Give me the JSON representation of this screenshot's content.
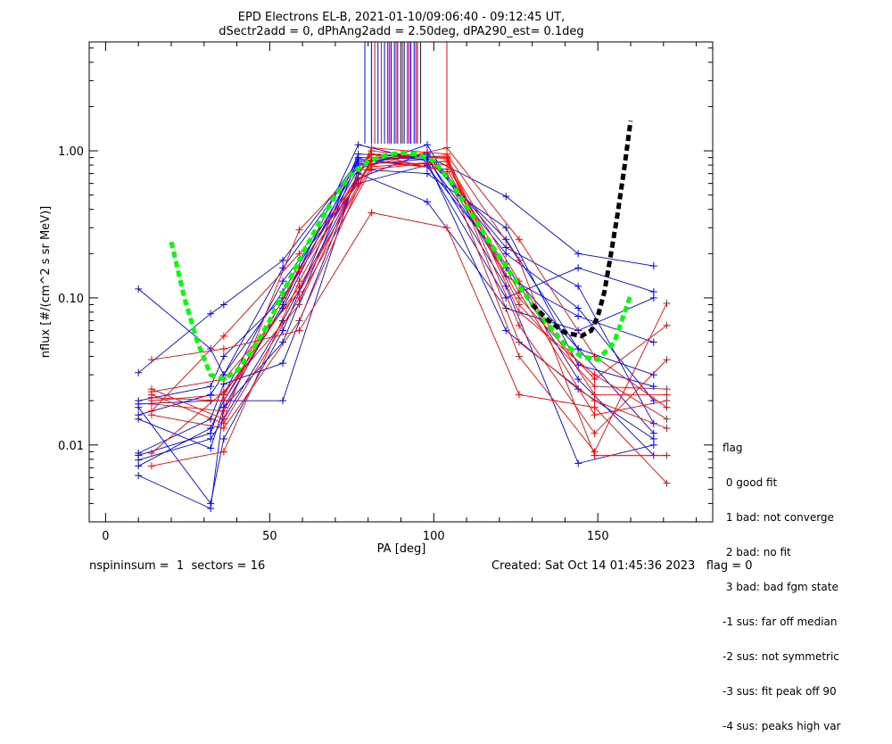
{
  "chart_data": {
    "type": "line",
    "title": "EPD Electrons EL-B, 2021-01-10/09:06:40 - 09:12:45 UT,",
    "subtitle": "dSectr2add = 0, dPhAng2add = 2.50deg, dPA290_est=   0.1deg",
    "xlabel": "PA [deg]",
    "ylabel": "nflux [#/(cm^2 s sr MeV)]",
    "xlim": [
      -5,
      185
    ],
    "ylim": [
      0.003,
      5.5
    ],
    "yscale": "log",
    "xticks": [
      0,
      50,
      100,
      150
    ],
    "xtick_labels": [
      "0",
      "50",
      "100",
      "150"
    ],
    "yticks": [
      0.01,
      0.1,
      1.0
    ],
    "ytick_labels": [
      "0.01",
      "0.10",
      "1.00"
    ],
    "colors": {
      "blue": "#0000ff",
      "red": "#ff0000",
      "green": "#00ff00",
      "black": "#000000"
    },
    "series": [
      {
        "color": "blue",
        "x": [
          10,
          32,
          36,
          54,
          77,
          98,
          122,
          144,
          167
        ],
        "y": [
          0.115,
          0.045,
          0.03,
          0.11,
          0.8,
          0.88,
          0.25,
          0.045,
          0.012
        ]
      },
      {
        "color": "blue",
        "x": [
          10,
          32,
          36,
          54,
          77,
          98,
          122,
          144,
          167
        ],
        "y": [
          0.031,
          0.078,
          0.09,
          0.18,
          0.85,
          0.92,
          0.49,
          0.2,
          0.165
        ]
      },
      {
        "color": "blue",
        "x": [
          10,
          32,
          36,
          54,
          77,
          98,
          122,
          144,
          167
        ],
        "y": [
          0.019,
          0.02,
          0.02,
          0.02,
          0.75,
          1.1,
          0.14,
          0.075,
          0.05
        ]
      },
      {
        "color": "blue",
        "x": [
          10,
          32,
          36,
          54,
          77,
          98,
          122,
          144,
          167
        ],
        "y": [
          0.018,
          0.004,
          0.011,
          0.06,
          0.95,
          0.9,
          0.12,
          0.0075,
          0.01
        ]
      },
      {
        "color": "blue",
        "x": [
          10,
          32,
          36,
          54,
          77,
          98,
          122,
          144,
          167
        ],
        "y": [
          0.0062,
          0.0037,
          0.018,
          0.09,
          1.1,
          0.85,
          0.06,
          0.024,
          0.011
        ]
      },
      {
        "color": "blue",
        "x": [
          10,
          32,
          36,
          54,
          77,
          98,
          122,
          144,
          167
        ],
        "y": [
          0.0085,
          0.012,
          0.022,
          0.13,
          0.6,
          0.8,
          0.1,
          0.16,
          0.11
        ]
      },
      {
        "color": "blue",
        "x": [
          10,
          32,
          36,
          54,
          77,
          98,
          122,
          144,
          167
        ],
        "y": [
          0.016,
          0.022,
          0.03,
          0.16,
          0.82,
          0.95,
          0.2,
          0.085,
          0.02
        ]
      },
      {
        "color": "blue",
        "x": [
          10,
          32,
          36,
          54,
          77,
          98,
          122,
          144,
          167
        ],
        "y": [
          0.0088,
          0.015,
          0.026,
          0.036,
          0.7,
          0.45,
          0.085,
          0.06,
          0.1
        ]
      },
      {
        "color": "blue",
        "x": [
          10,
          32,
          36,
          54,
          77,
          98,
          122,
          144,
          167
        ],
        "y": [
          0.015,
          0.0095,
          0.018,
          0.05,
          0.88,
          0.78,
          0.17,
          0.028,
          0.0085
        ]
      },
      {
        "color": "blue",
        "x": [
          10,
          32,
          36,
          54,
          77,
          98,
          122,
          144,
          167
        ],
        "y": [
          0.0079,
          0.011,
          0.015,
          0.07,
          0.65,
          0.98,
          0.22,
          0.12,
          0.014
        ]
      },
      {
        "color": "blue",
        "x": [
          10,
          32,
          36,
          54,
          77,
          98,
          122,
          144,
          167
        ],
        "y": [
          0.02,
          0.025,
          0.04,
          0.1,
          0.75,
          0.7,
          0.3,
          0.035,
          0.025
        ]
      },
      {
        "color": "blue",
        "x": [
          10,
          32,
          36,
          54,
          77,
          98,
          122,
          144,
          167
        ],
        "y": [
          0.0072,
          0.013,
          0.02,
          0.085,
          0.9,
          0.88,
          0.16,
          0.045,
          0.03
        ]
      },
      {
        "color": "red",
        "x": [
          14,
          36,
          59,
          81,
          104,
          126,
          149,
          171
        ],
        "y": [
          0.038,
          0.045,
          0.06,
          0.38,
          0.3,
          0.022,
          0.018,
          0.0055
        ]
      },
      {
        "color": "red",
        "x": [
          14,
          36,
          59,
          81,
          104,
          126,
          149,
          171
        ],
        "y": [
          0.024,
          0.015,
          0.29,
          0.95,
          0.72,
          0.04,
          0.009,
          0.092
        ]
      },
      {
        "color": "red",
        "x": [
          14,
          36,
          59,
          81,
          104,
          126,
          149,
          171
        ],
        "y": [
          0.021,
          0.02,
          0.15,
          0.85,
          0.75,
          0.1,
          0.028,
          0.065
        ]
      },
      {
        "color": "red",
        "x": [
          14,
          36,
          59,
          81,
          104,
          126,
          149,
          171
        ],
        "y": [
          0.0072,
          0.009,
          0.13,
          1.0,
          0.88,
          0.065,
          0.012,
          0.038
        ]
      },
      {
        "color": "red",
        "x": [
          14,
          36,
          59,
          81,
          104,
          126,
          149,
          171
        ],
        "y": [
          0.0088,
          0.023,
          0.09,
          1.05,
          0.95,
          0.18,
          0.0085,
          0.0085
        ]
      },
      {
        "color": "red",
        "x": [
          14,
          36,
          59,
          81,
          104,
          126,
          149,
          171
        ],
        "y": [
          0.017,
          0.055,
          0.2,
          0.8,
          1.05,
          0.25,
          0.04,
          0.018
        ]
      },
      {
        "color": "red",
        "x": [
          14,
          36,
          59,
          81,
          104,
          126,
          149,
          171
        ],
        "y": [
          0.022,
          0.014,
          0.1,
          0.75,
          0.85,
          0.13,
          0.022,
          0.022
        ]
      },
      {
        "color": "red",
        "x": [
          14,
          36,
          59,
          81,
          104,
          126,
          149,
          171
        ],
        "y": [
          0.016,
          0.013,
          0.07,
          0.9,
          0.92,
          0.08,
          0.03,
          0.015
        ]
      },
      {
        "color": "red",
        "x": [
          14,
          36,
          59,
          81,
          104,
          126,
          149,
          171
        ],
        "y": [
          0.023,
          0.028,
          0.11,
          0.85,
          0.8,
          0.11,
          0.016,
          0.02
        ]
      },
      {
        "color": "red",
        "x": [
          14,
          36,
          59,
          81,
          104,
          126,
          149,
          171
        ],
        "y": [
          0.019,
          0.017,
          0.16,
          0.95,
          0.9,
          0.05,
          0.02,
          0.013
        ]
      },
      {
        "color": "red",
        "x": [
          14,
          36,
          59,
          81,
          104,
          126,
          149,
          171
        ],
        "y": [
          0.02,
          0.022,
          0.12,
          0.78,
          0.85,
          0.09,
          0.025,
          0.024
        ]
      }
    ],
    "fits": [
      {
        "color": "green",
        "style": "dashed",
        "x": [
          20,
          24,
          28,
          32,
          36,
          40,
          45,
          50,
          55,
          60,
          65,
          70,
          75,
          80,
          85,
          90,
          95,
          100,
          105,
          110,
          115,
          120,
          125,
          130,
          135,
          140,
          145,
          150,
          155,
          160
        ],
        "y": [
          0.24,
          0.1,
          0.05,
          0.03,
          0.028,
          0.032,
          0.045,
          0.07,
          0.12,
          0.2,
          0.32,
          0.5,
          0.7,
          0.85,
          0.93,
          0.97,
          0.95,
          0.85,
          0.62,
          0.42,
          0.28,
          0.19,
          0.13,
          0.09,
          0.065,
          0.048,
          0.04,
          0.038,
          0.05,
          0.105
        ]
      },
      {
        "color": "black",
        "style": "dashed",
        "x": [
          130,
          135,
          140,
          145,
          148,
          150,
          152,
          154,
          156,
          158,
          160
        ],
        "y": [
          0.09,
          0.07,
          0.058,
          0.055,
          0.06,
          0.075,
          0.11,
          0.2,
          0.37,
          0.75,
          1.6
        ]
      }
    ],
    "vertical_markers": [
      {
        "color": "blue",
        "x": [
          79,
          81,
          83,
          85,
          86,
          87,
          88,
          89,
          90,
          91,
          92,
          93,
          94,
          95,
          96
        ],
        "y_top": 5.5,
        "y_bottom": 1.12
      },
      {
        "color": "red",
        "x": [
          82,
          84,
          86.5,
          88.5,
          90.5,
          92.5,
          94.5,
          104
        ],
        "y_top": 5.5,
        "y_bottom": 1.12
      }
    ]
  },
  "flag_legend": {
    "header": "flag",
    "items": [
      " 0 good fit",
      " 1 bad: not converge",
      " 2 bad: no fit",
      " 3 bad: bad fgm state",
      "-1 sus: far off median",
      "-2 sus: not symmetric",
      "-3 sus: fit peak off 90",
      "-4 sus: peaks high var"
    ]
  },
  "footer": {
    "left": "nspininsum =  1  sectors = 16",
    "right": "Created: Sat Oct 14 01:45:36 2023   flag = 0"
  }
}
